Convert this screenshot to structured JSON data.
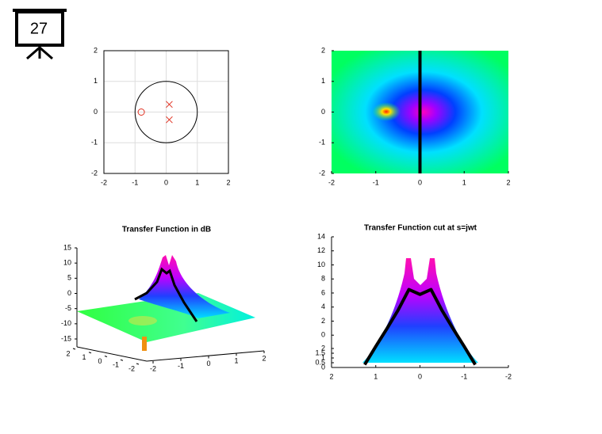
{
  "slide_number": "27",
  "chart_data": [
    {
      "type": "pole-zero",
      "xlim": [
        -2,
        2
      ],
      "ylim": [
        -2,
        2
      ],
      "xticks": [
        -2,
        -1,
        0,
        1,
        2
      ],
      "yticks": [
        -2,
        -1,
        0,
        1,
        2
      ],
      "grid": true,
      "color": "#e03020",
      "zeros": {
        "x": [
          -0.8
        ],
        "y": [
          0
        ]
      },
      "poles": {
        "x": [
          0.1,
          0.1
        ],
        "y": [
          0.25,
          -0.25
        ]
      }
    },
    {
      "type": "heatmap",
      "xlim": [
        -2,
        2
      ],
      "ylim": [
        -2,
        2
      ],
      "xticks": [
        -2,
        -1,
        0,
        1,
        2
      ],
      "yticks": [
        -2,
        -1,
        0,
        1,
        2
      ],
      "cut_x": 0
    },
    {
      "type": "surface3d",
      "title": "Transfer Function in dB",
      "xlim": [
        -2,
        2
      ],
      "ylim": [
        2,
        -2
      ],
      "zlim": [
        -15,
        15
      ],
      "xticks": [
        -2,
        -1,
        0,
        1,
        2
      ],
      "yticks": [
        2,
        1,
        0,
        -1,
        -2
      ],
      "zticks": [
        -15,
        -10,
        -5,
        0,
        5,
        10,
        15
      ]
    },
    {
      "type": "line",
      "title": "Transfer Function cut at s=jwt",
      "xlim": [
        2,
        -2
      ],
      "ylim": [
        -4.6,
        14
      ],
      "xticks": [
        2,
        1,
        0,
        -1,
        -2
      ],
      "yticks": [
        0,
        2,
        4,
        6,
        8,
        10,
        12,
        14
      ],
      "inset_ylim": [
        0,
        2
      ],
      "inset_yticks": [
        0,
        0.5,
        1,
        1.5,
        2
      ],
      "x": [
        -1.25,
        -1,
        -0.75,
        -0.5,
        -0.25,
        0,
        0.25,
        0.5,
        0.75,
        1,
        1.25
      ],
      "values": [
        -4.2,
        -1.6,
        0.9,
        3.5,
        6.5,
        5.8,
        6.5,
        3.5,
        0.9,
        -1.6,
        -4.2
      ],
      "color": "#000000"
    }
  ]
}
